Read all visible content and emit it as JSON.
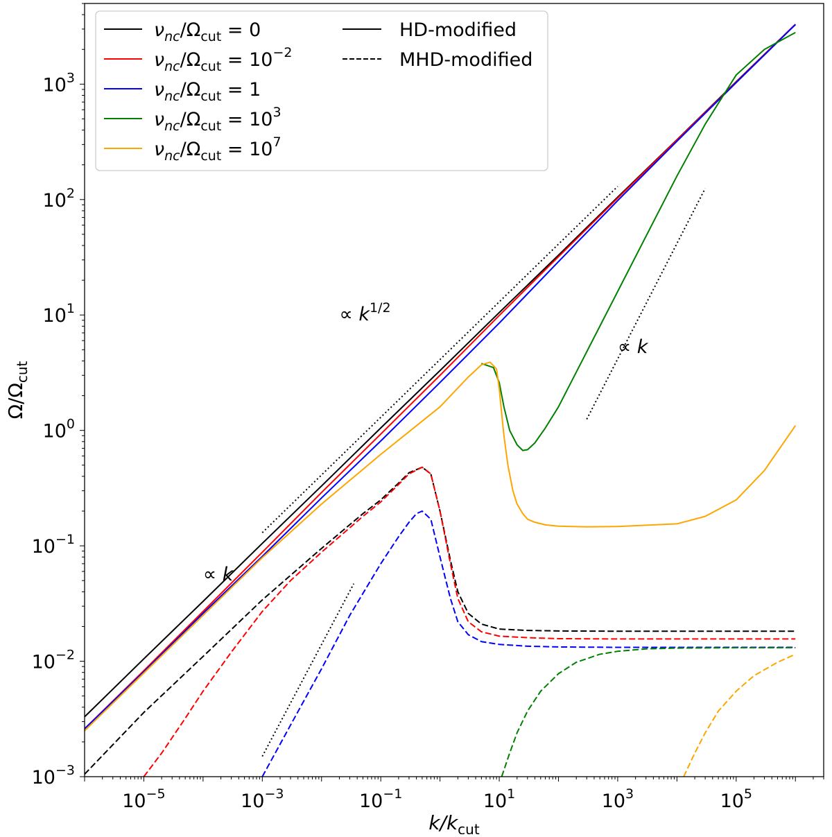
{
  "chart_data": {
    "type": "line",
    "scale": {
      "x": "log",
      "y": "log"
    },
    "xlim": [
      1e-06,
      3000000.0
    ],
    "ylim": [
      0.001,
      5000.0
    ],
    "xlabel": {
      "main": "k/k",
      "sub": "cut"
    },
    "ylabel": {
      "main": "Ω/Ω",
      "sub": "cut"
    },
    "x_ticks": [
      {
        "value": 1e-05,
        "base": "10",
        "exp": "−5"
      },
      {
        "value": 0.001,
        "base": "10",
        "exp": "−3"
      },
      {
        "value": 0.1,
        "base": "10",
        "exp": "−1"
      },
      {
        "value": 10,
        "base": "10",
        "exp": "1"
      },
      {
        "value": 1000,
        "base": "10",
        "exp": "3"
      },
      {
        "value": 100000,
        "base": "10",
        "exp": "5"
      }
    ],
    "y_ticks": [
      {
        "value": 0.001,
        "base": "10",
        "exp": "−3"
      },
      {
        "value": 0.01,
        "base": "10",
        "exp": "−2"
      },
      {
        "value": 0.1,
        "base": "10",
        "exp": "−1"
      },
      {
        "value": 1,
        "base": "10",
        "exp": "0"
      },
      {
        "value": 10,
        "base": "10",
        "exp": "1"
      },
      {
        "value": 100,
        "base": "10",
        "exp": "2"
      },
      {
        "value": 1000,
        "base": "10",
        "exp": "3"
      }
    ],
    "legend": {
      "placement": "top-left",
      "entries": [
        {
          "color": "#000000",
          "style": "solid",
          "prefix": "ν",
          "sub": "nc",
          "mid": "/Ω",
          "sub2": "cut",
          "eq": " = 0",
          "exp": ""
        },
        {
          "color": "#ff0000",
          "style": "solid",
          "prefix": "ν",
          "sub": "nc",
          "mid": "/Ω",
          "sub2": "cut",
          "eq": " = 10",
          "exp": "−2"
        },
        {
          "color": "#0000ff",
          "style": "solid",
          "prefix": "ν",
          "sub": "nc",
          "mid": "/Ω",
          "sub2": "cut",
          "eq": " = 1",
          "exp": ""
        },
        {
          "color": "#008000",
          "style": "solid",
          "prefix": "ν",
          "sub": "nc",
          "mid": "/Ω",
          "sub2": "cut",
          "eq": " = 10",
          "exp": "3"
        },
        {
          "color": "#ffa500",
          "style": "solid",
          "prefix": "ν",
          "sub": "nc",
          "mid": "/Ω",
          "sub2": "cut",
          "eq": " = 10",
          "exp": "7"
        }
      ],
      "style_entries": [
        {
          "label": "HD-modified",
          "style": "solid",
          "color": "#000000"
        },
        {
          "label": "MHD-modified",
          "style": "dashed",
          "color": "#000000"
        }
      ]
    },
    "series": [
      {
        "name": "HD ν_nc/Ω_cut=0",
        "color": "#000000",
        "style": "solid",
        "x": [
          1e-06,
          1e-05,
          0.0001,
          0.001,
          0.01,
          0.1,
          1,
          10,
          100,
          1000,
          10000,
          100000,
          1000000
        ],
        "y": [
          0.0033,
          0.0105,
          0.033,
          0.105,
          0.33,
          1.05,
          3.3,
          10.5,
          33,
          105,
          330,
          1050,
          3300
        ]
      },
      {
        "name": "HD ν_nc/Ω_cut=10^-2",
        "color": "#ff0000",
        "style": "solid",
        "x": [
          1e-06,
          1e-05,
          0.0001,
          0.001,
          0.01,
          0.1,
          1,
          10,
          100,
          1000,
          10000,
          100000,
          1000000
        ],
        "y": [
          0.0026,
          0.0083,
          0.027,
          0.088,
          0.29,
          0.93,
          3.0,
          9.9,
          32,
          103,
          328,
          1040,
          3300
        ]
      },
      {
        "name": "HD ν_nc/Ω_cut=1",
        "color": "#0000ff",
        "style": "solid",
        "x": [
          1e-06,
          1e-05,
          0.0001,
          0.001,
          0.01,
          0.1,
          1,
          10,
          100,
          1000,
          10000,
          100000,
          1000000
        ],
        "y": [
          0.0026,
          0.0081,
          0.026,
          0.081,
          0.26,
          0.81,
          2.6,
          8.5,
          29,
          98,
          320,
          1030,
          3280
        ]
      },
      {
        "name": "HD ν_nc/Ω_cut=10^3",
        "color": "#008000",
        "style": "solid",
        "x": [
          5,
          8,
          10,
          12,
          15,
          20,
          25,
          30,
          40,
          60,
          100,
          200,
          500,
          1000,
          3000,
          10000,
          30000,
          100000,
          300000,
          1000000
        ],
        "y": [
          3.8,
          3.5,
          2.6,
          1.6,
          1.0,
          0.75,
          0.67,
          0.68,
          0.78,
          1.05,
          1.6,
          3.2,
          8,
          16,
          48,
          160,
          450,
          1200,
          2000,
          2800
        ]
      },
      {
        "name": "HD ν_nc/Ω_cut=10^7",
        "color": "#ffa500",
        "style": "solid",
        "x": [
          1e-06,
          1e-05,
          0.0001,
          0.001,
          0.01,
          0.1,
          1,
          3,
          5,
          7,
          9,
          10,
          11,
          12,
          14,
          17,
          20,
          25,
          30,
          40,
          60,
          100,
          300,
          1000,
          10000,
          30000,
          100000,
          300000,
          1000000
        ],
        "y": [
          0.0025,
          0.0079,
          0.025,
          0.079,
          0.23,
          0.62,
          1.6,
          2.9,
          3.7,
          3.9,
          3.4,
          2.3,
          1.4,
          0.9,
          0.5,
          0.3,
          0.23,
          0.19,
          0.17,
          0.16,
          0.152,
          0.148,
          0.146,
          0.147,
          0.155,
          0.18,
          0.25,
          0.45,
          1.1
        ]
      },
      {
        "name": "MHD ν_nc/Ω_cut=0",
        "color": "#000000",
        "style": "dashed",
        "x": [
          1e-06,
          1e-05,
          0.0001,
          0.001,
          0.01,
          0.05,
          0.1,
          0.2,
          0.3,
          0.5,
          0.7,
          1,
          1.5,
          2,
          3,
          5,
          10,
          30,
          100,
          1000,
          10000,
          100000,
          1000000
        ],
        "y": [
          0.00105,
          0.0036,
          0.011,
          0.034,
          0.095,
          0.19,
          0.25,
          0.35,
          0.43,
          0.48,
          0.42,
          0.2,
          0.075,
          0.04,
          0.026,
          0.021,
          0.019,
          0.0185,
          0.0183,
          0.0182,
          0.0182,
          0.0182,
          0.0182
        ]
      },
      {
        "name": "MHD ν_nc/Ω_cut=10^-2",
        "color": "#ff0000",
        "style": "dashed",
        "x": [
          1e-05,
          2e-05,
          5e-05,
          0.0001,
          0.0003,
          0.001,
          0.003,
          0.01,
          0.05,
          0.1,
          0.2,
          0.3,
          0.5,
          0.7,
          1,
          1.5,
          2,
          3,
          5,
          10,
          30,
          100,
          1000,
          10000,
          100000,
          1000000
        ],
        "y": [
          0.001,
          0.0016,
          0.0032,
          0.0055,
          0.012,
          0.027,
          0.05,
          0.088,
          0.18,
          0.24,
          0.34,
          0.42,
          0.48,
          0.42,
          0.2,
          0.07,
          0.035,
          0.022,
          0.018,
          0.0165,
          0.016,
          0.0157,
          0.0156,
          0.0156,
          0.0156,
          0.0156
        ]
      },
      {
        "name": "MHD ν_nc/Ω_cut=1",
        "color": "#0000ff",
        "style": "dashed",
        "x": [
          0.001,
          0.003,
          0.01,
          0.03,
          0.1,
          0.2,
          0.3,
          0.4,
          0.5,
          0.7,
          1,
          1.5,
          2,
          3,
          5,
          10,
          30,
          100,
          1000,
          10000,
          100000,
          1000000
        ],
        "y": [
          0.001,
          0.0028,
          0.0086,
          0.025,
          0.07,
          0.12,
          0.16,
          0.19,
          0.2,
          0.17,
          0.08,
          0.035,
          0.022,
          0.017,
          0.0148,
          0.014,
          0.0135,
          0.0133,
          0.0132,
          0.0132,
          0.0132,
          0.0132
        ]
      },
      {
        "name": "MHD ν_nc/Ω_cut=10^3",
        "color": "#008000",
        "style": "dashed",
        "x": [
          11,
          15,
          20,
          30,
          50,
          100,
          200,
          500,
          1000,
          3000,
          10000,
          100000,
          1000000
        ],
        "y": [
          0.001,
          0.0016,
          0.0024,
          0.0037,
          0.0055,
          0.0078,
          0.0098,
          0.0115,
          0.0122,
          0.0128,
          0.013,
          0.0131,
          0.0131
        ]
      },
      {
        "name": "MHD ν_nc/Ω_cut=10^7",
        "color": "#ffa500",
        "style": "dashed",
        "x": [
          13000,
          20000,
          30000,
          50000,
          100000,
          200000,
          500000,
          1000000
        ],
        "y": [
          0.001,
          0.0016,
          0.0024,
          0.0037,
          0.0055,
          0.0075,
          0.0098,
          0.0115
        ]
      }
    ],
    "guides": [
      {
        "name": "k-half-guide",
        "x": [
          0.001,
          1000
        ],
        "y": [
          0.13,
          130
        ]
      },
      {
        "name": "k-high-guide",
        "x": [
          300,
          30000
        ],
        "y": [
          1.25,
          125
        ]
      },
      {
        "name": "k-low-guide",
        "x": [
          0.001,
          0.035
        ],
        "y": [
          0.0015,
          0.047
        ]
      }
    ],
    "annotations": [
      {
        "name": "annotation-k-half",
        "prefix": "∝ ",
        "main": "k",
        "sup": "1/2",
        "x": 0.02,
        "y": 9
      },
      {
        "name": "annotation-k-high",
        "prefix": "∝ ",
        "main": "k",
        "sup": "",
        "x": 1000,
        "y": 4.7
      },
      {
        "name": "annotation-k-low",
        "prefix": "∝ ",
        "main": "k",
        "sup": "",
        "x": 0.0001,
        "y": 0.05
      }
    ]
  }
}
